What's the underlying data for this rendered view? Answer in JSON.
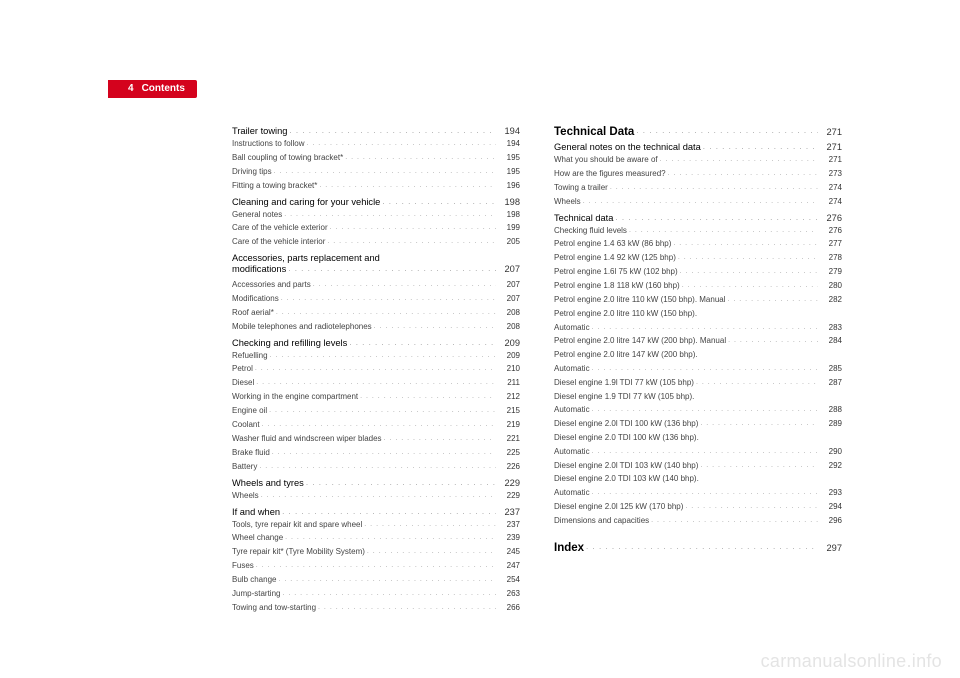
{
  "tab": {
    "page_number": "4",
    "title": "Contents"
  },
  "watermark": "carmanualsonline.info",
  "col1": [
    {
      "type": "heading",
      "label": "Trailer towing",
      "page": "194"
    },
    {
      "type": "sub",
      "label": "Instructions to follow",
      "page": "194"
    },
    {
      "type": "sub",
      "label": "Ball coupling of towing bracket*",
      "page": "195"
    },
    {
      "type": "sub",
      "label": "Driving tips",
      "page": "195"
    },
    {
      "type": "sub",
      "label": "Fitting a towing bracket*",
      "page": "196"
    },
    {
      "type": "heading",
      "label": "Cleaning and caring for your vehicle",
      "page": "198"
    },
    {
      "type": "sub",
      "label": "General notes",
      "page": "198"
    },
    {
      "type": "sub",
      "label": "Care of the vehicle exterior",
      "page": "199"
    },
    {
      "type": "sub",
      "label": "Care of the vehicle interior",
      "page": "205"
    },
    {
      "type": "heading2",
      "label1": "Accessories, parts replacement and",
      "label2": "modifications",
      "page": "207"
    },
    {
      "type": "sub",
      "label": "Accessories and parts",
      "page": "207"
    },
    {
      "type": "sub",
      "label": "Modifications",
      "page": "207"
    },
    {
      "type": "sub",
      "label": "Roof aerial*",
      "page": "208"
    },
    {
      "type": "sub",
      "label": "Mobile telephones and radiotelephones",
      "page": "208"
    },
    {
      "type": "heading",
      "label": "Checking and refilling levels",
      "page": "209"
    },
    {
      "type": "sub",
      "label": "Refuelling",
      "page": "209"
    },
    {
      "type": "sub",
      "label": "Petrol",
      "page": "210"
    },
    {
      "type": "sub",
      "label": "Diesel",
      "page": "211"
    },
    {
      "type": "sub",
      "label": "Working in the engine compartment",
      "page": "212"
    },
    {
      "type": "sub",
      "label": "Engine oil",
      "page": "215"
    },
    {
      "type": "sub",
      "label": "Coolant",
      "page": "219"
    },
    {
      "type": "sub",
      "label": "Washer fluid and windscreen wiper blades",
      "page": "221"
    },
    {
      "type": "sub",
      "label": "Brake fluid",
      "page": "225"
    },
    {
      "type": "sub",
      "label": "Battery",
      "page": "226"
    },
    {
      "type": "heading",
      "label": "Wheels and tyres",
      "page": "229"
    },
    {
      "type": "sub",
      "label": "Wheels",
      "page": "229"
    },
    {
      "type": "heading",
      "label": "If and when",
      "page": "237"
    },
    {
      "type": "sub",
      "label": "Tools, tyre repair kit and spare wheel",
      "page": "237"
    },
    {
      "type": "sub",
      "label": "Wheel change",
      "page": "239"
    },
    {
      "type": "sub",
      "label": "Tyre repair kit* (Tyre Mobility System)",
      "page": "245"
    },
    {
      "type": "sub",
      "label": "Fuses",
      "page": "247"
    },
    {
      "type": "sub",
      "label": "Bulb change",
      "page": "254"
    },
    {
      "type": "sub",
      "label": "Jump-starting",
      "page": "263"
    },
    {
      "type": "sub",
      "label": "Towing and tow-starting",
      "page": "266"
    }
  ],
  "col2": [
    {
      "type": "big",
      "label": "Technical Data",
      "page": "271"
    },
    {
      "type": "heading",
      "label": "General notes on the technical data",
      "page": "271"
    },
    {
      "type": "sub",
      "label": "What you should be aware of",
      "page": "271"
    },
    {
      "type": "sub",
      "label": "How are the figures measured?",
      "page": "273"
    },
    {
      "type": "sub",
      "label": "Towing a trailer",
      "page": "274"
    },
    {
      "type": "sub",
      "label": "Wheels",
      "page": "274"
    },
    {
      "type": "heading",
      "label": "Technical data",
      "page": "276"
    },
    {
      "type": "sub",
      "label": "Checking fluid levels",
      "page": "276"
    },
    {
      "type": "sub",
      "label": "Petrol engine 1.4 63 kW (86 bhp)",
      "page": "277"
    },
    {
      "type": "sub",
      "label": "Petrol engine 1.4 92 kW (125 bhp)",
      "page": "278"
    },
    {
      "type": "sub",
      "label": "Petrol engine 1.6l 75 kW (102 bhp)",
      "page": "279"
    },
    {
      "type": "sub",
      "label": "Petrol engine 1.8 118 kW (160 bhp)",
      "page": "280"
    },
    {
      "type": "sub",
      "label": "Petrol engine 2.0 litre 110 kW (150 bhp). Manual",
      "page": "282"
    },
    {
      "type": "sub2",
      "label1": "Petrol engine 2.0 litre 110 kW (150 bhp).",
      "label2": "Automatic",
      "page": "283"
    },
    {
      "type": "sub",
      "label": "Petrol engine 2.0 litre 147 kW (200 bhp). Manual",
      "page": "284"
    },
    {
      "type": "sub2",
      "label1": "Petrol engine 2.0 litre 147 kW (200 bhp).",
      "label2": "Automatic",
      "page": "285"
    },
    {
      "type": "sub",
      "label": "Diesel engine 1.9l TDI 77 kW (105 bhp)",
      "page": "287"
    },
    {
      "type": "sub2",
      "label1": "Diesel engine 1.9 TDI 77 kW (105 bhp).",
      "label2": "Automatic",
      "page": "288"
    },
    {
      "type": "sub",
      "label": "Diesel engine 2.0l TDI 100 kW (136 bhp)",
      "page": "289"
    },
    {
      "type": "sub2",
      "label1": "Diesel engine 2.0 TDI 100 kW (136 bhp).",
      "label2": "Automatic",
      "page": "290"
    },
    {
      "type": "sub",
      "label": "Diesel engine 2.0l TDI 103 kW (140 bhp)",
      "page": "292"
    },
    {
      "type": "sub2",
      "label1": "Diesel engine 2.0 TDI 103 kW (140 bhp).",
      "label2": "Automatic",
      "page": "293"
    },
    {
      "type": "sub",
      "label": "Diesel engine 2.0l 125 kW (170 bhp)",
      "page": "294"
    },
    {
      "type": "sub",
      "label": "Dimensions and capacities",
      "page": "296"
    },
    {
      "type": "bigindex",
      "label": "Index",
      "page": "297"
    }
  ]
}
